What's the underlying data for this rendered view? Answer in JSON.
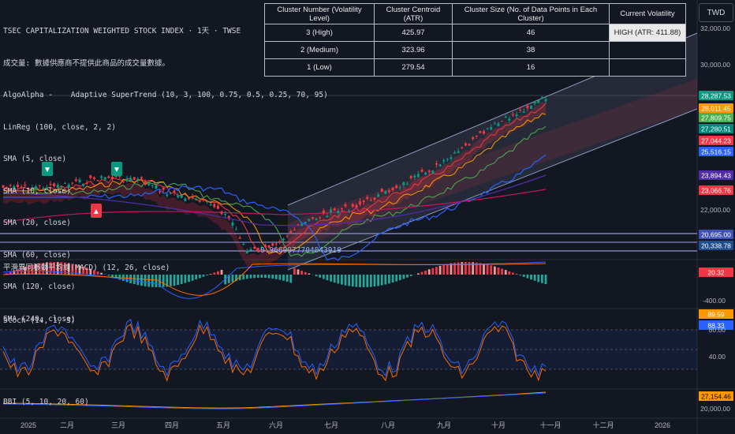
{
  "header": {
    "title": "TSEC CAPITALIZATION WEIGHTED STOCK INDEX · 1天 · TWSE",
    "volume_note": "成交量: 數據供應商不提供此商品的成交量數據。",
    "indicators": [
      "AlgoAlpha -    Adaptive SuperTrend (10, 3, 100, 0.75, 0.5, 0.25, 70, 95)",
      "LinReg (100, close, 2, 2)",
      "SMA (5, close)",
      "SMA (10, close)",
      "SMA (20, close)",
      "SMA (60, close)",
      "SMA (120, close)",
      "SMA (240, close)"
    ]
  },
  "currency": "TWD",
  "cluster_table": {
    "headers": [
      "Cluster Number (Volatility Level)",
      "Cluster Centroid (ATR)",
      "Cluster Size (No. of Data Points in Each Cluster)",
      "Current Volatility"
    ],
    "rows": [
      {
        "level": "3 (High)",
        "centroid": "425.97",
        "size": "46",
        "current": "HIGH (ATR: 411.88)"
      },
      {
        "level": "2 (Medium)",
        "centroid": "323.96",
        "size": "38",
        "current": ""
      },
      {
        "level": "1 (Low)",
        "centroid": "279.54",
        "size": "16",
        "current": ""
      }
    ]
  },
  "panes": {
    "macd_label": "平滑異同移動平均線(MACD) (12, 26, close)",
    "stoch_label": "Stoch (14, 1, 3)",
    "bbi_label": "BBI (5, 10, 20, 60)",
    "linreg_value_label": "0.9660977704043919"
  },
  "colors": {
    "bg": "#131722",
    "up": "#089981",
    "down": "#f23645",
    "sma_blue": "#2962ff",
    "sma_red": "#c2185b",
    "stoch_k": "#2962ff",
    "stoch_d": "#ff6d00"
  },
  "chart_data": [
    {
      "type": "candlestick",
      "title": "TSEC CAPITALIZATION WEIGHTED STOCK INDEX",
      "y_axis_ticks": [
        "32,000.00",
        "30,000.00",
        "22,000.00"
      ],
      "x_axis_ticks": [
        "2025",
        "二月",
        "三月",
        "四月",
        "五月",
        "六月",
        "七月",
        "八月",
        "九月",
        "十月",
        "十一月",
        "十二月",
        "2026"
      ],
      "price_labels": [
        {
          "value": "28,287.53",
          "color": "#089981"
        },
        {
          "value": "28,011.45",
          "color": "#ff9800"
        },
        {
          "value": "27,809.75",
          "color": "#4caf50"
        },
        {
          "value": "27,280.51",
          "color": "#00897b"
        },
        {
          "value": "27,044.23",
          "color": "#f23645"
        },
        {
          "value": "25,516.15",
          "color": "#2962ff"
        },
        {
          "value": "23,894.43",
          "color": "#512da8"
        },
        {
          "value": "23,066.76",
          "color": "#f23645"
        },
        {
          "value": "20,695.00",
          "color": "#3f51b5"
        },
        {
          "value": "20,338.78",
          "color": "#1e4e8c"
        }
      ],
      "markers": [
        {
          "type": "sell",
          "symbol": "▼"
        },
        {
          "type": "sell",
          "symbol": "▼"
        },
        {
          "type": "buy",
          "symbol": "▲"
        }
      ]
    },
    {
      "type": "bar",
      "title": "平滑異同移動平均線(MACD) (12, 26, close)",
      "y_axis_ticks": [
        "-400.00"
      ],
      "last_value": "20.32"
    },
    {
      "type": "line",
      "title": "Stoch (14, 1, 3)",
      "y_axis_ticks": [
        "80.00",
        "40.00"
      ],
      "series": [
        {
          "last": "89.59"
        },
        {
          "last": "88.33"
        }
      ]
    },
    {
      "type": "line",
      "title": "BBI (5, 10, 20, 60)",
      "y_axis_ticks": [
        "20,000.00"
      ],
      "last_value": "27,154.46"
    }
  ]
}
